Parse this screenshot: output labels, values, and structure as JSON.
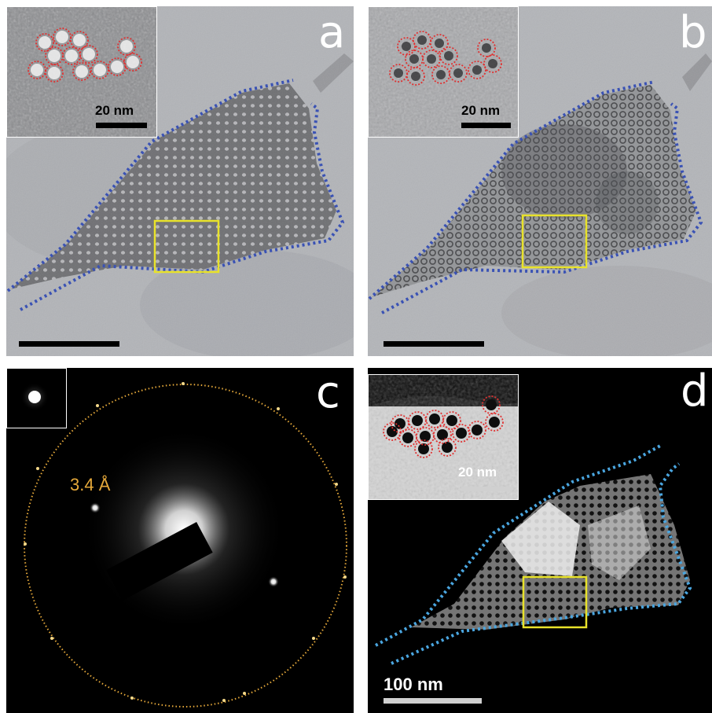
{
  "panels": {
    "a": {
      "label": "a",
      "inset_scale": "20 nm"
    },
    "b": {
      "label": "b",
      "inset_scale": "20 nm"
    },
    "c": {
      "label": "c",
      "spacing_label": "3.4 Å"
    },
    "d": {
      "label": "d",
      "inset_scale": "20 nm",
      "scale": "100 nm"
    }
  },
  "colors": {
    "outline_blue": "#3a52b4",
    "outline_cyan": "#4aa6e0",
    "highlight_box": "#e8e22a",
    "pore_circles": "#e03030",
    "ring": "#e6a93a"
  }
}
